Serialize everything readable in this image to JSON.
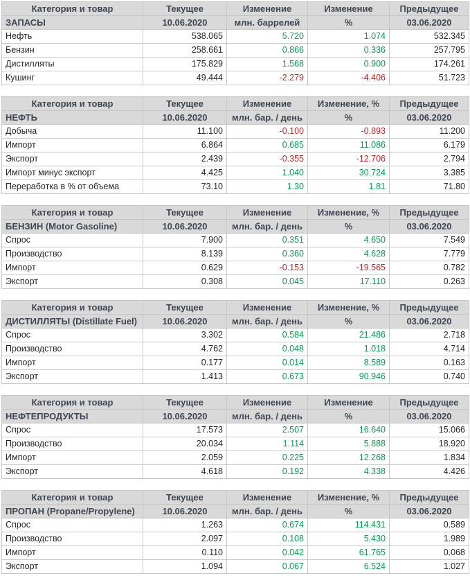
{
  "colors": {
    "header_bg": "#d9d9d9",
    "header_text": "#3e4753",
    "positive": "#00a050",
    "negative": "#cc2222",
    "border": "#c6c6c6",
    "text": "#262626"
  },
  "chart_data": [
    {
      "type": "table",
      "id": "inventories",
      "headers": [
        "Категория и товар",
        "Текущее",
        "Изменение",
        "Изменение",
        "Предыдущее"
      ],
      "subheaders": [
        "ЗАПАСЫ",
        "10.06.2020",
        "млн. баррелей",
        "%",
        "03.06.2020"
      ],
      "rows": [
        {
          "label": "Нефть",
          "current": "538.065",
          "change": "5.720",
          "change_pct": "1.074",
          "previous": "532.345"
        },
        {
          "label": "Бензин",
          "current": "258.661",
          "change": "0.866",
          "change_pct": "0.336",
          "previous": "257.795"
        },
        {
          "label": "Дистилляты",
          "current": "175.829",
          "change": "1.568",
          "change_pct": "0.900",
          "previous": "174.261"
        },
        {
          "label": "Кушинг",
          "current": "49.444",
          "change": "-2.279",
          "change_pct": "-4.406",
          "previous": "51.723"
        }
      ]
    },
    {
      "type": "table",
      "id": "oil",
      "headers": [
        "Категория и товар",
        "Текущее",
        "Изменение",
        "Изменение, %",
        "Предыдущее"
      ],
      "subheaders": [
        "НЕФТЬ",
        "10.06.2020",
        "млн. бар. / день",
        "%",
        "03.06.2020"
      ],
      "rows": [
        {
          "label": "Добыча",
          "current": "11.100",
          "change": "-0.100",
          "change_pct": "-0.893",
          "previous": "11.200"
        },
        {
          "label": "Импорт",
          "current": "6.864",
          "change": "0.685",
          "change_pct": "11.086",
          "previous": "6.179"
        },
        {
          "label": "Экспорт",
          "current": "2.439",
          "change": "-0.355",
          "change_pct": "-12.706",
          "previous": "2.794"
        },
        {
          "label": "Импорт минус экспорт",
          "current": "4.425",
          "change": "1.040",
          "change_pct": "30.724",
          "previous": "3.385"
        },
        {
          "label": "Переработка в % от объема",
          "current": "73.10",
          "change": "1.30",
          "change_pct": "1.81",
          "previous": "71.80"
        }
      ]
    },
    {
      "type": "table",
      "id": "gasoline",
      "headers": [
        "Категория и товар",
        "Текущее",
        "Изменение",
        "Изменение, %",
        "Предыдущее"
      ],
      "subheaders": [
        "БЕНЗИН (Motor Gasoline)",
        "10.06.2020",
        "млн. бар. / день",
        "%",
        "03.06.2020"
      ],
      "rows": [
        {
          "label": "Спрос",
          "current": "7.900",
          "change": "0.351",
          "change_pct": "4.650",
          "previous": "7.549"
        },
        {
          "label": "Производство",
          "current": "8.139",
          "change": "0.360",
          "change_pct": "4.628",
          "previous": "7.779"
        },
        {
          "label": "Импорт",
          "current": "0.629",
          "change": "-0.153",
          "change_pct": "-19.565",
          "previous": "0.782"
        },
        {
          "label": "Экспорт",
          "current": "0.308",
          "change": "0.045",
          "change_pct": "17.110",
          "previous": "0.263"
        }
      ]
    },
    {
      "type": "table",
      "id": "distillates",
      "headers": [
        "Категория и товар",
        "Текущее",
        "Изменение",
        "Изменение, %",
        "Предыдущее"
      ],
      "subheaders": [
        "ДИСТИЛЛЯТЫ (Distillate Fuel)",
        "10.06.2020",
        "млн. бар. / день",
        "%",
        "03.06.2020"
      ],
      "rows": [
        {
          "label": "Спрос",
          "current": "3.302",
          "change": "0.584",
          "change_pct": "21.486",
          "previous": "2.718"
        },
        {
          "label": "Производство",
          "current": "4.762",
          "change": "0.048",
          "change_pct": "1.018",
          "previous": "4.714"
        },
        {
          "label": "Импорт",
          "current": "0.177",
          "change": "0.014",
          "change_pct": "8.589",
          "previous": "0.163"
        },
        {
          "label": "Экспорт",
          "current": "1.413",
          "change": "0.673",
          "change_pct": "90.946",
          "previous": "0.740"
        }
      ]
    },
    {
      "type": "table",
      "id": "products",
      "headers": [
        "Категория и товар",
        "Текущее",
        "Изменение",
        "Изменение",
        "Предыдущее"
      ],
      "subheaders": [
        "НЕФТЕПРОДУКТЫ",
        "10.06.2020",
        "млн. бар. / день",
        "%",
        "03.06.2020"
      ],
      "rows": [
        {
          "label": "Спрос",
          "current": "17.573",
          "change": "2.507",
          "change_pct": "16.640",
          "previous": "15.066"
        },
        {
          "label": "Производство",
          "current": "20.034",
          "change": "1.114",
          "change_pct": "5.888",
          "previous": "18.920"
        },
        {
          "label": "Импорт",
          "current": "2.059",
          "change": "0.225",
          "change_pct": "12.268",
          "previous": "1.834"
        },
        {
          "label": "Экспорт",
          "current": "4.618",
          "change": "0.192",
          "change_pct": "4.338",
          "previous": "4.426"
        }
      ]
    },
    {
      "type": "table",
      "id": "propane",
      "headers": [
        "Категория и товар",
        "Текущее",
        "Изменение",
        "Изменение, %",
        "Предыдущее"
      ],
      "subheaders": [
        "ПРОПАН (Propane/Propylene)",
        "10.06.2020",
        "млн. бар. / день",
        "%",
        "03.06.2020"
      ],
      "rows": [
        {
          "label": "Спрос",
          "current": "1.263",
          "change": "0.674",
          "change_pct": "114.431",
          "previous": "0.589"
        },
        {
          "label": "Производство",
          "current": "2.097",
          "change": "0.108",
          "change_pct": "5.430",
          "previous": "1.989"
        },
        {
          "label": "Импорт",
          "current": "0.110",
          "change": "0.042",
          "change_pct": "61.765",
          "previous": "0.068"
        },
        {
          "label": "Экспорт",
          "current": "1.094",
          "change": "0.067",
          "change_pct": "6.524",
          "previous": "1.027"
        }
      ]
    }
  ]
}
